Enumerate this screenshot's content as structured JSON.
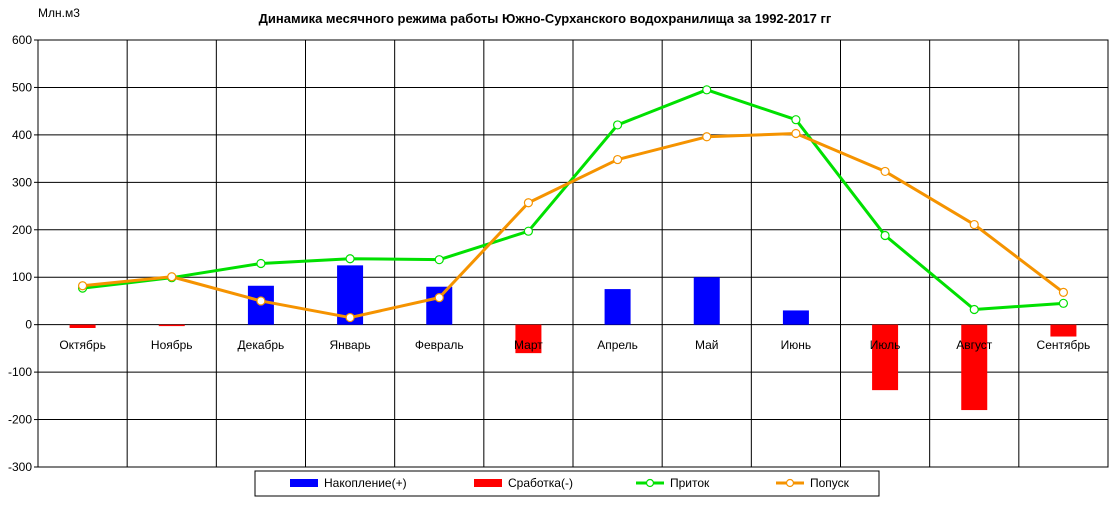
{
  "chart_data": {
    "type": "bar",
    "title": "Динамика месячного режима работы Южно-Сурханского водохранилища за 1992-2017 гг",
    "ylabel": "Млн.м3",
    "xlabel": "",
    "ylim": [
      -300,
      600
    ],
    "yticks": [
      600,
      500,
      400,
      300,
      200,
      100,
      0,
      -100,
      -200,
      -300
    ],
    "categories": [
      "Октябрь",
      "Ноябрь",
      "Декабрь",
      "Январь",
      "Февраль",
      "Март",
      "Апрель",
      "Май",
      "Июнь",
      "Июль",
      "Август",
      "Сентябрь"
    ],
    "grid": true,
    "legend_position": "bottom",
    "series": [
      {
        "name": "Накопление(+)",
        "kind": "bar",
        "color": "#0000ff",
        "values": [
          null,
          null,
          82,
          125,
          80,
          null,
          75,
          100,
          30,
          null,
          null,
          null
        ]
      },
      {
        "name": "Сработка(-)",
        "kind": "bar",
        "color": "#ff0000",
        "values": [
          -7,
          -3,
          null,
          null,
          null,
          -60,
          null,
          null,
          null,
          -138,
          -180,
          -25
        ]
      },
      {
        "name": "Приток",
        "kind": "line",
        "color": "#00e000",
        "values": [
          77,
          99,
          129,
          139,
          137,
          197,
          421,
          495,
          432,
          188,
          32,
          45
        ]
      },
      {
        "name": "Попуск",
        "kind": "line",
        "color": "#f59300",
        "values": [
          82,
          101,
          50,
          15,
          57,
          257,
          348,
          396,
          403,
          323,
          211,
          68
        ]
      }
    ]
  }
}
